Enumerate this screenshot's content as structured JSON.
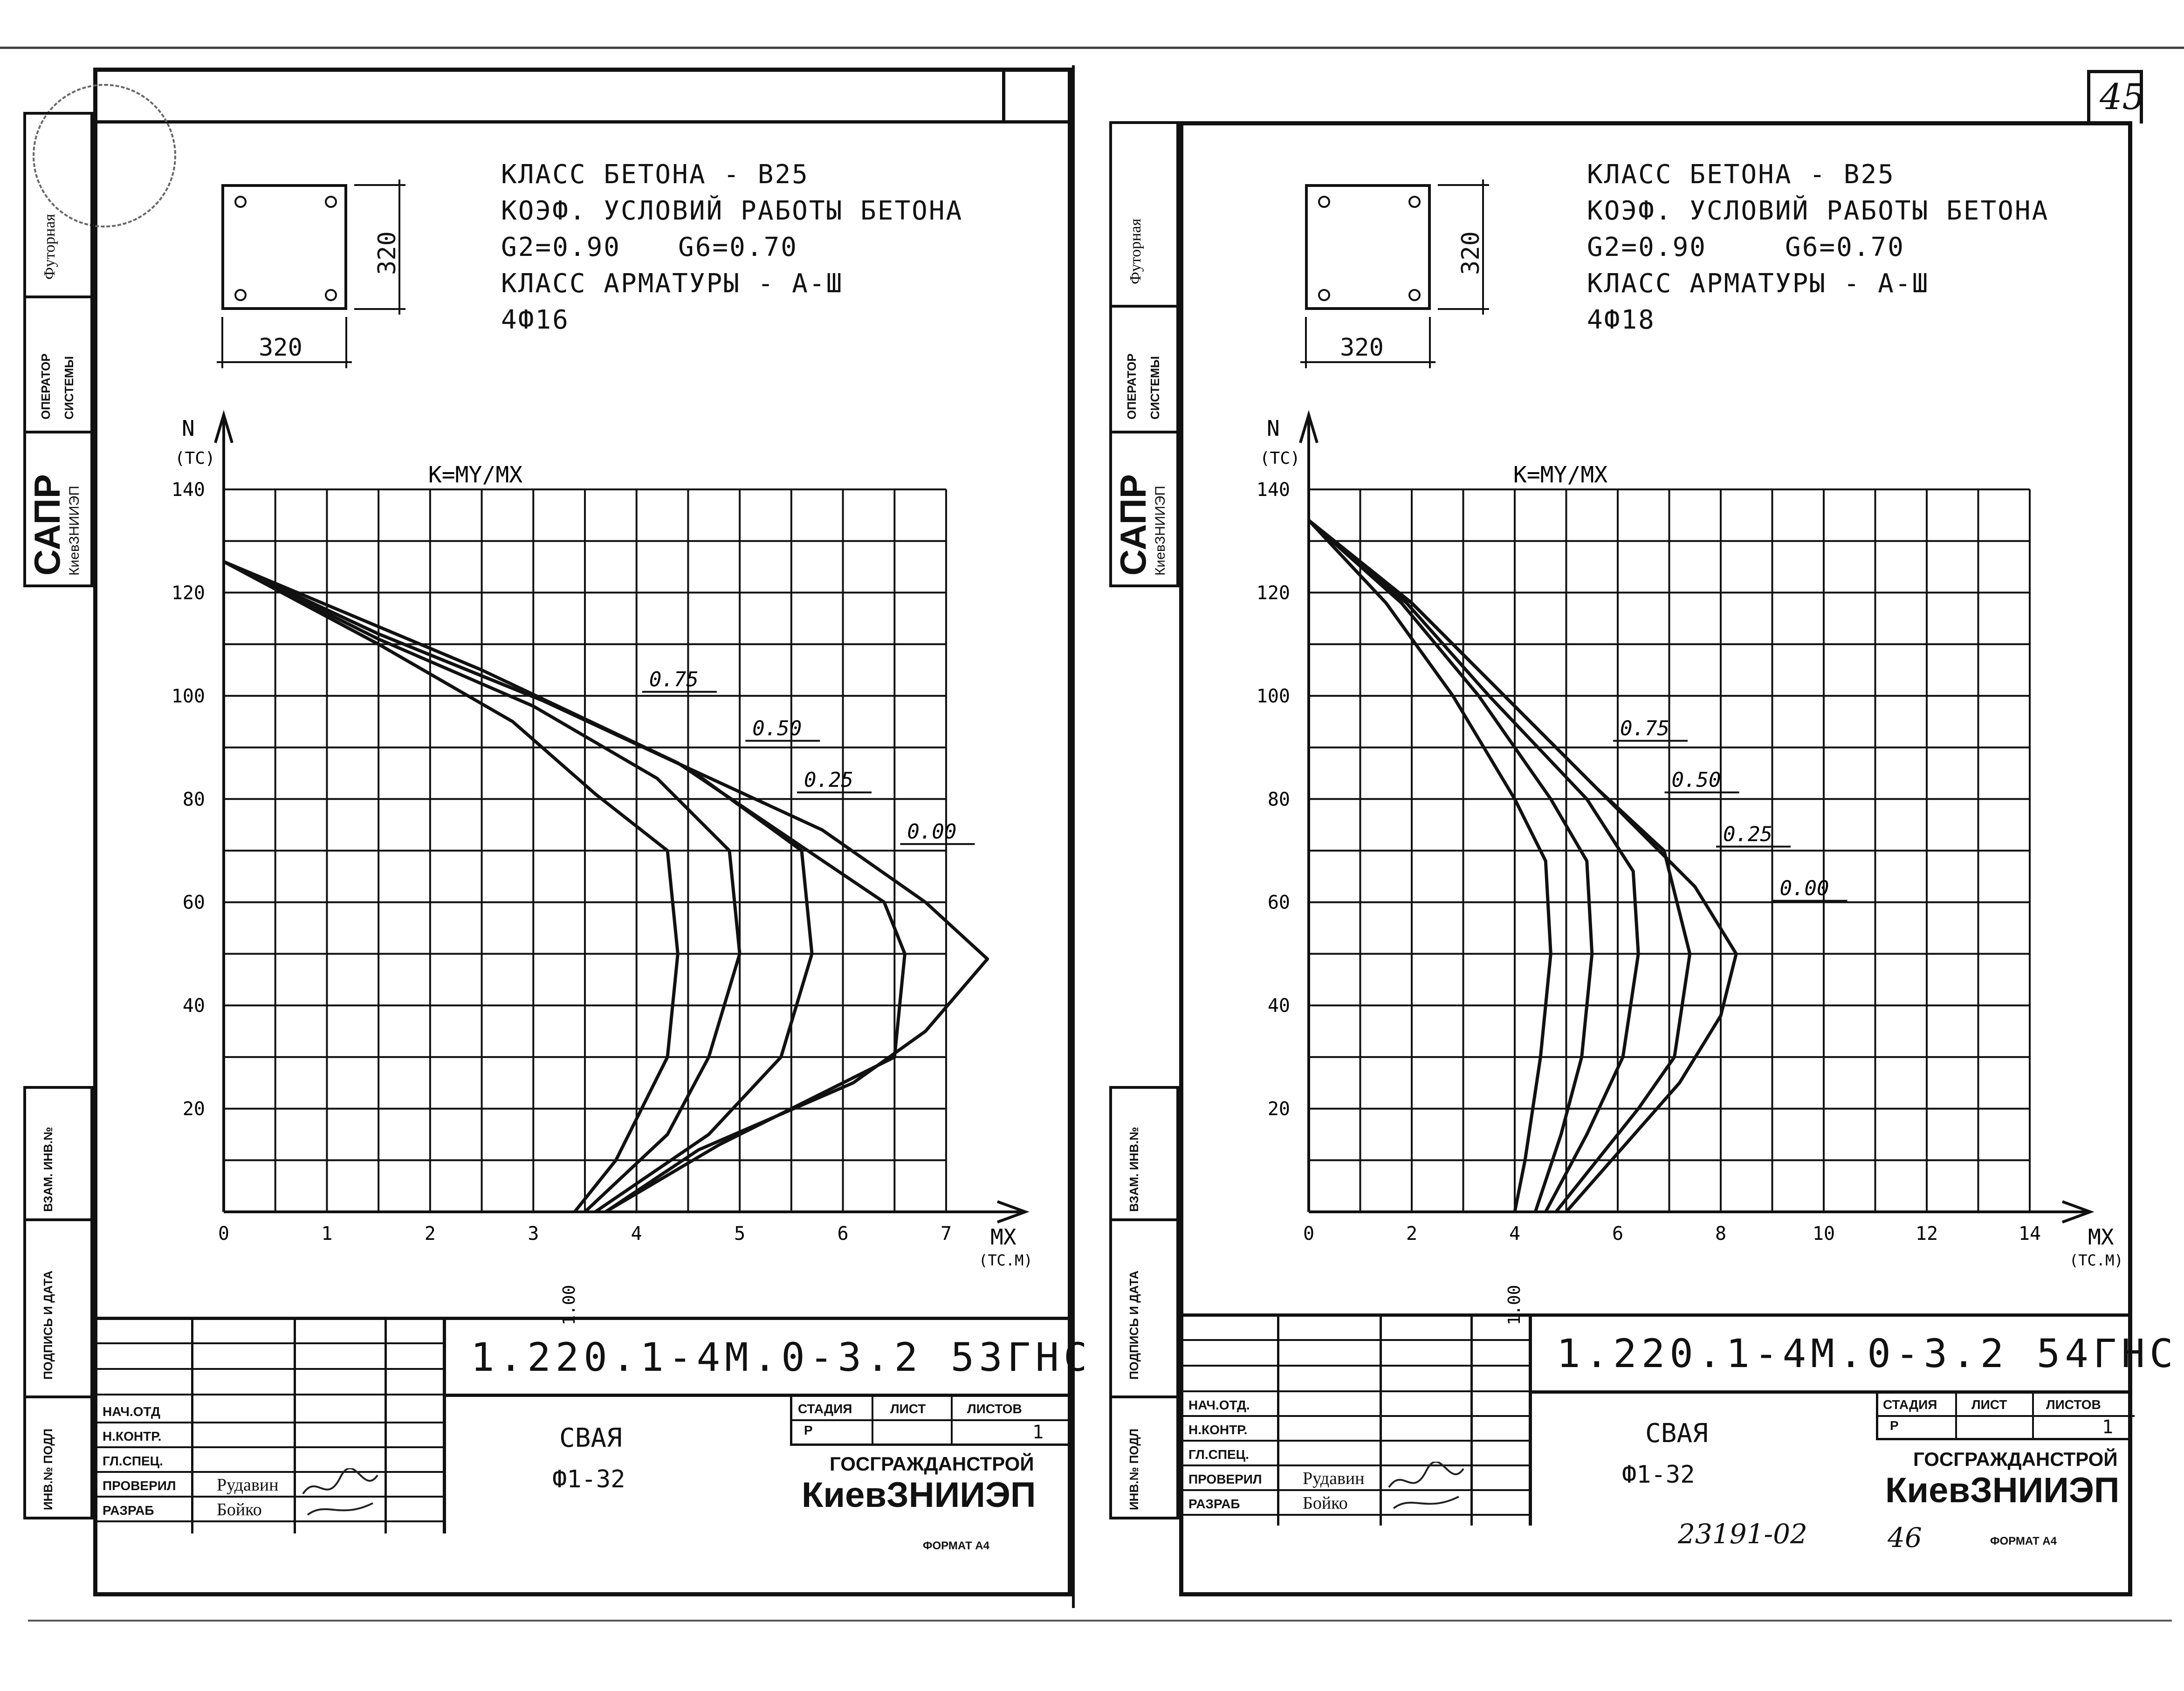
{
  "page_number": "45",
  "handwritten_note": "23191-02",
  "handwritten_page": "46",
  "sidebar": {
    "futornaya": "Футорная",
    "operator": "ОПЕРАТОР",
    "sistemy": "СИСТЕМЫ",
    "sapr": "САПР",
    "institute": "КиевЗНИИЭП",
    "vzam": "ВЗАМ. ИНВ.№",
    "podpis": "ПОДПИСЬ И ДАТА",
    "inv_podl": "ИНВ.№ ПОДЛ"
  },
  "sheets": [
    {
      "spec": {
        "line1": "КЛАСС БЕТОНА - B25",
        "line2": "КОЭФ. УСЛОВИЙ РАБОТЫ БЕТОНА",
        "line3a": "G2=0.90",
        "line3b": "G6=0.70",
        "line4": "КЛАСС АРМАТУРЫ - А-Ш",
        "line5": "4Ф16"
      },
      "section_width": "320",
      "section_height": "320",
      "title_block": {
        "code": "1.220.1-4М.0-3.2 53ГНС",
        "name": "СВАЯ",
        "mark": "Ф1-32",
        "stage_label": "СТАДИЯ",
        "sheet_label": "ЛИСТ",
        "sheets_label": "ЛИСТОВ",
        "stage": "Р",
        "sheets": "1",
        "org_top": "ГОСГРАЖДАНСТРОЙ",
        "org_bottom": "КиевЗНИИЭП",
        "roles": [
          "НАЧ.ОТД",
          "Н.КОНТР.",
          "ГЛ.СПЕЦ.",
          "ПРОВЕРИЛ",
          "РАЗРАБ"
        ],
        "checked_by": "Рудавин",
        "developed_by": "Бойко",
        "format": "ФОРМАТ А4"
      }
    },
    {
      "spec": {
        "line1": "КЛАСС БЕТОНА - B25",
        "line2": "КОЭФ. УСЛОВИЙ РАБОТЫ БЕТОНА",
        "line3a": "G2=0.90",
        "line3b": "G6=0.70",
        "line4": "КЛАСС АРМАТУРЫ - А-Ш",
        "line5": "4Ф18"
      },
      "section_width": "320",
      "section_height": "320",
      "title_block": {
        "code": "1.220.1-4М.0-3.2 54ГНС",
        "name": "СВАЯ",
        "mark": "Ф1-32",
        "stage_label": "СТАДИЯ",
        "sheet_label": "ЛИСТ",
        "sheets_label": "ЛИСТОВ",
        "stage": "Р",
        "sheets": "1",
        "org_top": "ГОСГРАЖДАНСТРОЙ",
        "org_bottom": "КиевЗНИИЭП",
        "roles": [
          "НАЧ.ОТД.",
          "Н.КОНТР.",
          "ГЛ.СПЕЦ.",
          "ПРОВЕРИЛ",
          "РАЗРАБ"
        ],
        "checked_by": "Рудавин",
        "developed_by": "Бойко",
        "format": "ФОРМАТ А4"
      }
    }
  ],
  "chart_data": [
    {
      "type": "line",
      "title": "K=MY/MX",
      "xlabel": "MX (ТС.М)",
      "ylabel": "N (ТС)",
      "xlim": [
        0,
        7
      ],
      "ylim": [
        0,
        140
      ],
      "x_ticks": [
        0,
        1,
        2,
        3,
        4,
        5,
        6,
        7
      ],
      "y_ticks": [
        20,
        40,
        60,
        80,
        100,
        120,
        140
      ],
      "grid": true,
      "extra_tick": {
        "label": "1.00",
        "x": 3.4
      },
      "series": [
        {
          "name": "0.75",
          "points": [
            [
              0,
              126
            ],
            [
              1.5,
              110
            ],
            [
              2.8,
              95
            ],
            [
              3.6,
              81
            ],
            [
              4.3,
              70
            ],
            [
              4.4,
              50
            ],
            [
              4.3,
              30
            ],
            [
              3.8,
              10
            ],
            [
              3.4,
              0
            ]
          ]
        },
        {
          "name": "0.50",
          "points": [
            [
              0,
              126
            ],
            [
              1.5,
              111
            ],
            [
              3.0,
              98
            ],
            [
              4.2,
              84
            ],
            [
              4.9,
              70
            ],
            [
              5.0,
              50
            ],
            [
              4.7,
              30
            ],
            [
              4.3,
              15
            ],
            [
              3.5,
              0
            ]
          ]
        },
        {
          "name": "0.25",
          "points": [
            [
              0,
              126
            ],
            [
              1.5,
              112
            ],
            [
              3.1,
              99
            ],
            [
              4.5,
              86
            ],
            [
              5.6,
              70
            ],
            [
              5.7,
              50
            ],
            [
              5.4,
              30
            ],
            [
              4.7,
              15
            ],
            [
              3.6,
              0
            ]
          ]
        },
        {
          "name": "0.00",
          "points": [
            [
              0,
              126
            ],
            [
              1.5,
              112
            ],
            [
              3.1,
              99
            ],
            [
              4.5,
              86
            ],
            [
              5.8,
              74
            ],
            [
              6.8,
              60
            ],
            [
              7.4,
              49
            ],
            [
              6.8,
              35
            ],
            [
              6.1,
              25
            ],
            [
              4.6,
              12
            ],
            [
              3.7,
              0
            ]
          ]
        },
        {
          "name": "",
          "points": [
            [
              0,
              126
            ],
            [
              2.5,
              105
            ],
            [
              4.4,
              87
            ],
            [
              6.4,
              60
            ],
            [
              6.6,
              50
            ],
            [
              6.5,
              30
            ],
            [
              4.8,
              13
            ],
            [
              3.7,
              0
            ]
          ]
        }
      ],
      "labels": [
        {
          "text": "0.75",
          "x": 4.1,
          "y": 101.5
        },
        {
          "text": "0.50",
          "x": 5.1,
          "y": 92.0
        },
        {
          "text": "0.25",
          "x": 5.6,
          "y": 82.0
        },
        {
          "text": "0.00",
          "x": 6.6,
          "y": 72.0
        }
      ]
    },
    {
      "type": "line",
      "title": "K=MY/MX",
      "xlabel": "MX (ТС.М)",
      "ylabel": "N (ТС)",
      "xlim": [
        0,
        14
      ],
      "ylim": [
        0,
        140
      ],
      "x_ticks": [
        0,
        2,
        4,
        6,
        8,
        10,
        12,
        14
      ],
      "y_ticks": [
        20,
        40,
        60,
        80,
        100,
        120,
        140
      ],
      "grid": true,
      "extra_tick": {
        "label": "1.00",
        "x": 4.1
      },
      "series": [
        {
          "name": "0.75",
          "points": [
            [
              0,
              134
            ],
            [
              1.5,
              118
            ],
            [
              2.8,
              100
            ],
            [
              4.0,
              80
            ],
            [
              4.6,
              68
            ],
            [
              4.7,
              50
            ],
            [
              4.5,
              30
            ],
            [
              4.2,
              10
            ],
            [
              4.0,
              0
            ]
          ]
        },
        {
          "name": "0.50",
          "points": [
            [
              0,
              134
            ],
            [
              1.8,
              118
            ],
            [
              3.3,
              100
            ],
            [
              4.7,
              80
            ],
            [
              5.4,
              68
            ],
            [
              5.5,
              50
            ],
            [
              5.3,
              30
            ],
            [
              4.9,
              15
            ],
            [
              4.4,
              0
            ]
          ]
        },
        {
          "name": "0.25",
          "points": [
            [
              0,
              134
            ],
            [
              1.9,
              118
            ],
            [
              3.5,
              100
            ],
            [
              5.4,
              80
            ],
            [
              6.3,
              66
            ],
            [
              6.4,
              50
            ],
            [
              6.1,
              30
            ],
            [
              5.4,
              15
            ],
            [
              4.6,
              0
            ]
          ]
        },
        {
          "name": "0.00",
          "points": [
            [
              0,
              134
            ],
            [
              2.0,
              118
            ],
            [
              3.8,
              100
            ],
            [
              5.6,
              82
            ],
            [
              6.9,
              70
            ],
            [
              7.4,
              50
            ],
            [
              7.1,
              30
            ],
            [
              6.4,
              20
            ],
            [
              4.8,
              0
            ]
          ]
        },
        {
          "name": "",
          "points": [
            [
              0,
              134
            ],
            [
              2.0,
              118
            ],
            [
              3.8,
              100
            ],
            [
              5.8,
              80
            ],
            [
              7.5,
              63
            ],
            [
              8.3,
              50
            ],
            [
              8.0,
              38
            ],
            [
              7.2,
              25
            ],
            [
              5.0,
              0
            ]
          ]
        }
      ],
      "labels": [
        {
          "text": "0.75",
          "x": 6.0,
          "y": 92.0
        },
        {
          "text": "0.50",
          "x": 7.0,
          "y": 82.0
        },
        {
          "text": "0.25",
          "x": 8.0,
          "y": 71.5
        },
        {
          "text": "0.00",
          "x": 9.1,
          "y": 61.0
        }
      ]
    }
  ]
}
